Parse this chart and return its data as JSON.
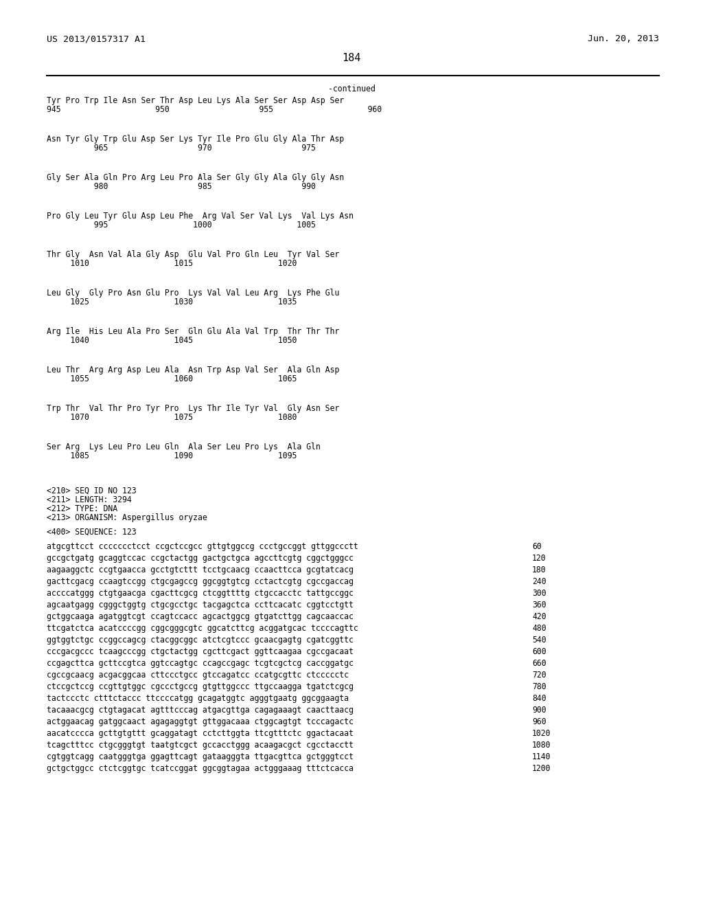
{
  "header_left": "US 2013/0157317 A1",
  "header_right": "Jun. 20, 2013",
  "page_number": "184",
  "continued_label": "-continued",
  "background_color": "#ffffff",
  "text_color": "#000000",
  "protein_blocks": [
    {
      "aa": "Tyr Pro Trp Ile Asn Ser Thr Asp Leu Lys Ala Ser Ser Asp Asp Ser",
      "nums": "945                    950                   955                    960"
    },
    {
      "aa": "Asn Tyr Gly Trp Glu Asp Ser Lys Tyr Ile Pro Glu Gly Ala Thr Asp",
      "nums": "          965                   970                   975"
    },
    {
      "aa": "Gly Ser Ala Gln Pro Arg Leu Pro Ala Ser Gly Gly Ala Gly Gly Asn",
      "nums": "          980                   985                   990"
    },
    {
      "aa": "Pro Gly Leu Tyr Glu Asp Leu Phe  Arg Val Ser Val Lys  Val Lys Asn",
      "nums": "          995                  1000                  1005"
    },
    {
      "aa": "Thr Gly  Asn Val Ala Gly Asp  Glu Val Pro Gln Leu  Tyr Val Ser",
      "nums": "     1010                  1015                  1020"
    },
    {
      "aa": "Leu Gly  Gly Pro Asn Glu Pro  Lys Val Val Leu Arg  Lys Phe Glu",
      "nums": "     1025                  1030                  1035"
    },
    {
      "aa": "Arg Ile  His Leu Ala Pro Ser  Gln Glu Ala Val Trp  Thr Thr Thr",
      "nums": "     1040                  1045                  1050"
    },
    {
      "aa": "Leu Thr  Arg Arg Asp Leu Ala  Asn Trp Asp Val Ser  Ala Gln Asp",
      "nums": "     1055                  1060                  1065"
    },
    {
      "aa": "Trp Thr  Val Thr Pro Tyr Pro  Lys Thr Ile Tyr Val  Gly Asn Ser",
      "nums": "     1070                  1075                  1080"
    },
    {
      "aa": "Ser Arg  Lys Leu Pro Leu Gln  Ala Ser Leu Pro Lys  Ala Gln",
      "nums": "     1085                  1090                  1095"
    }
  ],
  "seq_info": [
    "<210> SEQ ID NO 123",
    "<211> LENGTH: 3294",
    "<212> TYPE: DNA",
    "<213> ORGANISM: Aspergillus oryzae",
    "",
    "<400> SEQUENCE: 123"
  ],
  "dna_lines": [
    [
      "atgcgttcct ccccccctcct ccgctccgcc gttgtggccg ccctgccggt gttggccctt",
      "60"
    ],
    [
      "gccgctgatg gcaggtccac ccgctactgg gactgctgca agccttcgtg cggctgggcc",
      "120"
    ],
    [
      "aagaaggctc ccgtgaacca gcctgtcttt tcctgcaacg ccaacttcca gcgtatcacg",
      "180"
    ],
    [
      "gacttcgacg ccaagtccgg ctgcgagccg ggcggtgtcg cctactcgtg cgccgaccag",
      "240"
    ],
    [
      "accccatggg ctgtgaacga cgacttcgcg ctcggttttg ctgccacctc tattgccggc",
      "300"
    ],
    [
      "agcaatgagg cgggctggtg ctgcgcctgc tacgagctca ccttcacatc cggtcctgtt",
      "360"
    ],
    [
      "gctggcaaga agatggtcgt ccagtccacc agcactggcg gtgatcttgg cagcaaccac",
      "420"
    ],
    [
      "ttcgatctca acatccccgg cggcgggcgtc ggcatcttcg acggatgcac tccccagttc",
      "480"
    ],
    [
      "ggtggtctgc ccggccagcg ctacggcggc atctcgtccc gcaacgagtg cgatcggttc",
      "540"
    ],
    [
      "cccgacgccc tcaagcccgg ctgctactgg cgcttcgact ggttcaagaa cgccgacaat",
      "600"
    ],
    [
      "ccgagcttca gcttccgtca ggtccagtgc ccagccgagc tcgtcgctcg caccggatgc",
      "660"
    ],
    [
      "cgccgcaacg acgacggcaa cttccctgcc gtccagatcc ccatgcgttc ctccccctc",
      "720"
    ],
    [
      "ctccgctccg ccgttgtggc cgccctgccg gtgttggccc ttgccaagga tgatctcgcg",
      "780"
    ],
    [
      "tactccctc ctttctaccc ttccccatgg gcagatggtc agggtgaatg ggcggaagta",
      "840"
    ],
    [
      "tacaaacgcg ctgtagacat agtttcccag atgacgttga cagagaaagt caacttaacg",
      "900"
    ],
    [
      "actggaacag gatggcaact agagaggtgt gttggacaaa ctggcagtgt tcccagactc",
      "960"
    ],
    [
      "aacatcccca gcttgtgttt gcaggatagt cctcttggta ttcgtttctc ggactacaat",
      "1020"
    ],
    [
      "tcagctttcc ctgcgggtgt taatgtcgct gccacctggg acaagacgct cgcctacctt",
      "1080"
    ],
    [
      "cgtggtcagg caatgggtga ggagttcagt gataagggta ttgacgttca gctgggtcct",
      "1140"
    ],
    [
      "gctgctggcc ctctcggtgc tcatccggat ggcggtagaa actgggaaag tttctcacca",
      "1200"
    ]
  ]
}
